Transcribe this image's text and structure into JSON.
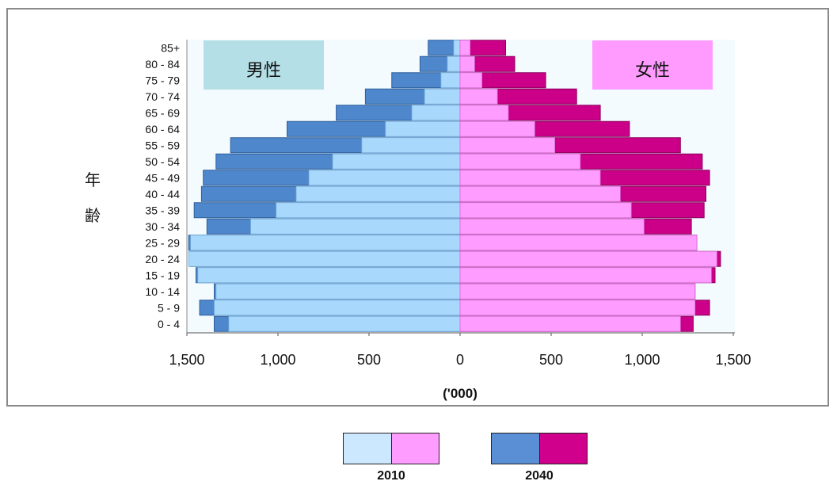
{
  "chart_data": {
    "type": "population-pyramid",
    "age_axis_label": "年齢",
    "x_unit_label": "('000)",
    "x_ticks": [
      "1,500",
      "1,000",
      "500",
      "0",
      "500",
      "1,000",
      "1,500"
    ],
    "xlim": [
      -1500,
      1500
    ],
    "male_label": "男性",
    "female_label": "女性",
    "age_groups": [
      "85+",
      "80 - 84",
      "75 - 79",
      "70 - 74",
      "65 - 69",
      "60 - 64",
      "55 - 59",
      "50 - 54",
      "45 - 49",
      "40 - 44",
      "35 - 39",
      "30 - 34",
      "25 - 29",
      "20 - 24",
      "15 - 19",
      "10 - 14",
      "5 - 9",
      "0 - 4"
    ],
    "series": [
      {
        "name": "2010",
        "sex": "male",
        "values": [
          35,
          70,
          105,
          195,
          265,
          410,
          540,
          700,
          830,
          900,
          1010,
          1150,
          1480,
          1490,
          1440,
          1340,
          1350,
          1270
        ]
      },
      {
        "name": "2040",
        "sex": "male",
        "values": [
          175,
          220,
          375,
          520,
          680,
          950,
          1260,
          1340,
          1410,
          1420,
          1460,
          1390,
          1490,
          1480,
          1450,
          1350,
          1430,
          1350
        ]
      },
      {
        "name": "2010",
        "sex": "female",
        "values": [
          55,
          80,
          120,
          205,
          265,
          410,
          520,
          660,
          770,
          880,
          940,
          1010,
          1300,
          1410,
          1380,
          1290,
          1290,
          1210
        ]
      },
      {
        "name": "2040",
        "sex": "female",
        "values": [
          250,
          300,
          470,
          640,
          770,
          930,
          1210,
          1330,
          1370,
          1350,
          1340,
          1270,
          1300,
          1430,
          1400,
          1290,
          1370,
          1280
        ]
      }
    ],
    "legend": [
      {
        "label": "2010",
        "male_color": "#cce8ff",
        "female_color": "#ff9cff"
      },
      {
        "label": "2040",
        "male_color": "#5a8fd6",
        "female_color": "#d0008c"
      }
    ],
    "colors": {
      "male_2010": "#a8d8fb",
      "male_2040": "#4f87cc",
      "female_2010": "#ff9cff",
      "female_2040": "#cc0088",
      "male_label_bg": "#b4dfe7",
      "female_label_bg": "#ff9bff",
      "plot_bg": "#f3fbff"
    }
  }
}
